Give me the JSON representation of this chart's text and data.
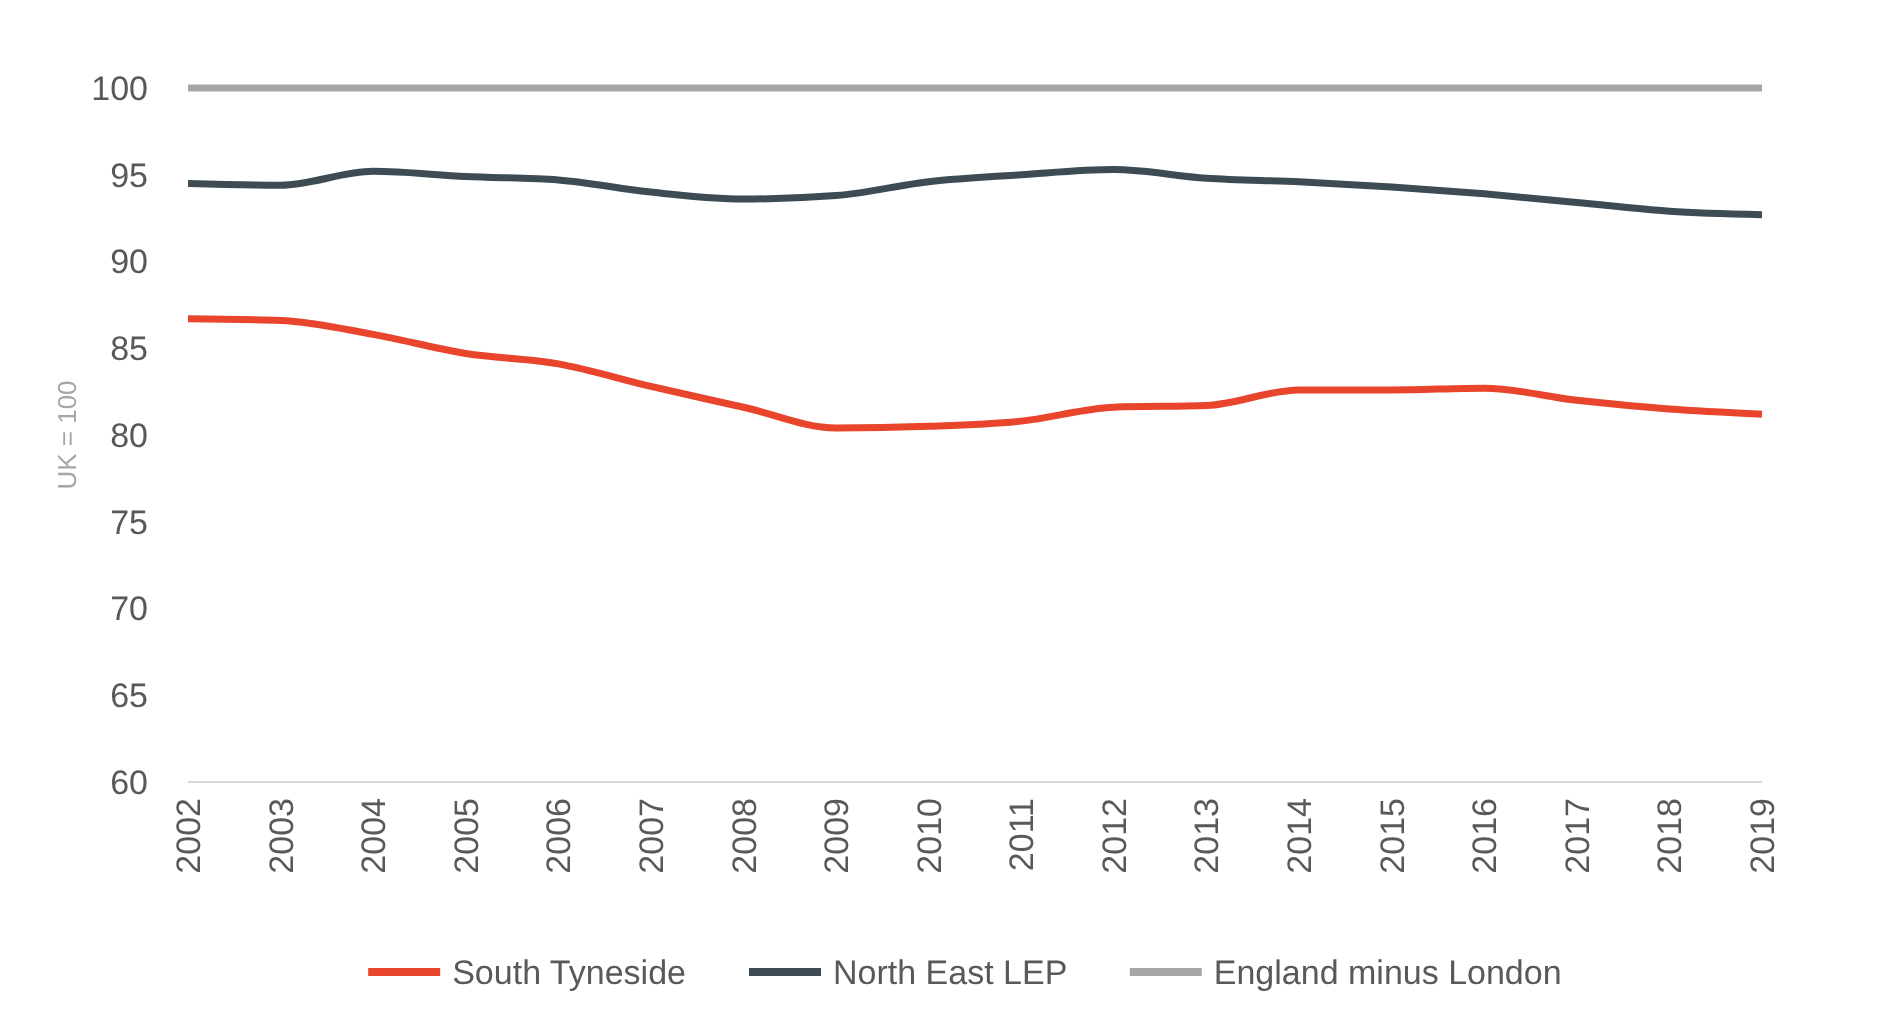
{
  "chart_data": {
    "type": "line",
    "ylabel": "UK = 100",
    "categories": [
      "2002",
      "2003",
      "2004",
      "2005",
      "2006",
      "2007",
      "2008",
      "2009",
      "2010",
      "2011",
      "2012",
      "2013",
      "2014",
      "2015",
      "2016",
      "2017",
      "2018",
      "2019"
    ],
    "series": [
      {
        "name": "South Tyneside",
        "color": "#e8452c",
        "values": [
          86.7,
          86.6,
          85.8,
          84.7,
          84.1,
          82.8,
          81.6,
          80.4,
          80.5,
          80.8,
          81.6,
          81.7,
          82.6,
          82.6,
          82.7,
          82.0,
          81.5,
          81.2
        ]
      },
      {
        "name": "North East LEP",
        "color": "#3d4b55",
        "values": [
          94.5,
          94.4,
          95.2,
          94.9,
          94.7,
          94.0,
          93.6,
          93.8,
          94.6,
          95.0,
          95.3,
          94.8,
          94.6,
          94.3,
          93.9,
          93.4,
          92.9,
          92.7
        ]
      },
      {
        "name": "England minus London",
        "color": "#a6a6a6",
        "values": [
          100,
          100,
          100,
          100,
          100,
          100,
          100,
          100,
          100,
          100,
          100,
          100,
          100,
          100,
          100,
          100,
          100,
          100
        ]
      }
    ],
    "ylim": [
      60,
      100
    ],
    "yticks": [
      60,
      65,
      70,
      75,
      80,
      85,
      90,
      95,
      100
    ],
    "grid": false,
    "legend": "bottom",
    "line_style": "solid"
  }
}
